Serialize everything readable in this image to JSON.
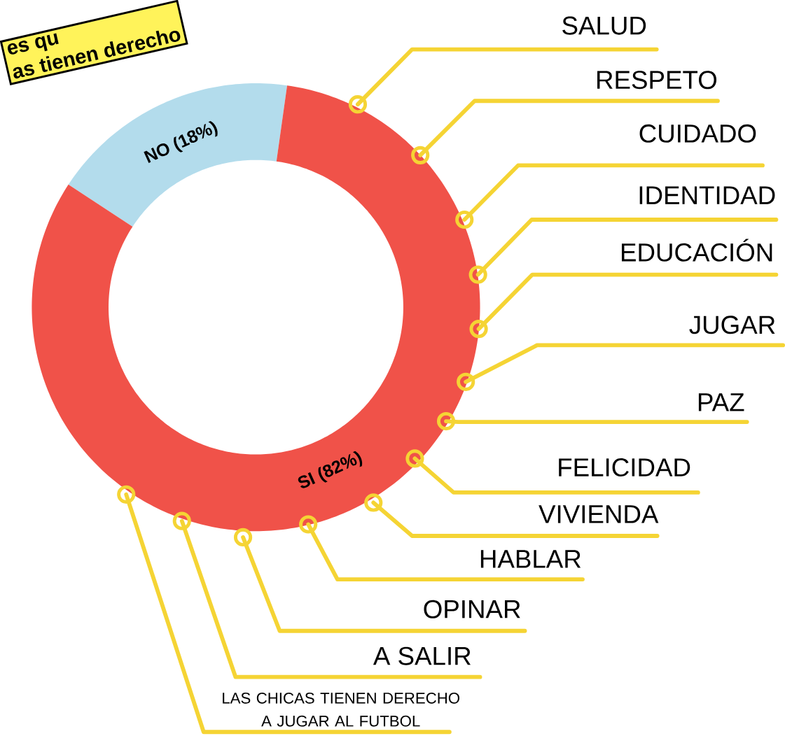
{
  "chart_data": {
    "type": "donut",
    "title": "es qu",
    "subtitle": "as tienen derecho",
    "categories": [
      "SI",
      "NO"
    ],
    "values": [
      82,
      18
    ],
    "colors": [
      "#f05249",
      "#b3dcec"
    ],
    "value_labels": [
      "(82%)",
      "(18%)"
    ],
    "annotations": [
      "SALUD",
      "RESPETO",
      "CUIDADO",
      "IDENTIDAD",
      "EDUCACIÓN",
      "JUGAR",
      "PAZ",
      "FELICIDAD",
      "VIVIENDA",
      "HABLAR",
      "OPINAR",
      "A SALIR",
      "LAS CHICAS TIENEN DERECHO A JUGAR AL FUTBOL"
    ]
  }
}
